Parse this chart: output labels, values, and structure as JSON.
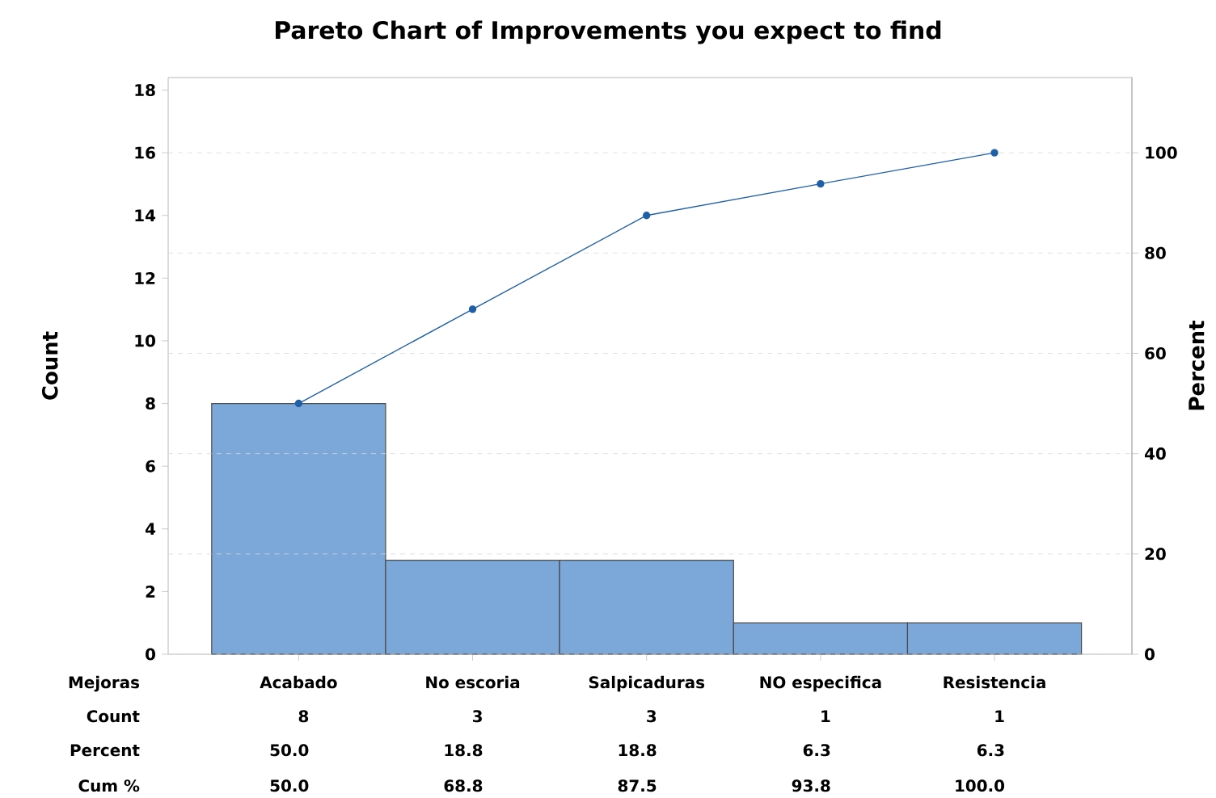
{
  "chart_data": {
    "type": "bar",
    "title": "Pareto Chart of Improvements you expect to find",
    "xlabel": "Mejoras",
    "ylabel": "Count",
    "y2label": "Percent",
    "categories": [
      "Acabado",
      "No escoria",
      "Salpicaduras",
      "NO especifica",
      "Resistencia"
    ],
    "series": [
      {
        "color": "#7ba7d9",
        "values": [
          8,
          3,
          3,
          1,
          1
        ],
        "value_labels": [
          "8",
          "3",
          "3",
          "1",
          "1"
        ]
      },
      {
        "type": "line",
        "axis": "y2",
        "color": "#1f5fa8",
        "values": [
          50.0,
          68.8,
          87.5,
          93.8,
          100.0
        ],
        "value_labels": [
          "50.0",
          "68.8",
          "87.5",
          "93.8",
          "100.0"
        ]
      }
    ],
    "annotations": [
      "Count",
      "Percent",
      "Cum %",
      "50.0",
      "18.8",
      "18.8",
      "6.3",
      "6.3"
    ],
    "ylim": [
      0,
      18.4
    ],
    "yticks": [
      0,
      2,
      4,
      6,
      8,
      10,
      12,
      14,
      16,
      18
    ],
    "y2lim": [
      0,
      115
    ],
    "y2ticks": [
      0,
      20,
      40,
      60,
      80,
      100
    ],
    "grid": "y2",
    "marker": "circle",
    "line_style": "solid"
  }
}
